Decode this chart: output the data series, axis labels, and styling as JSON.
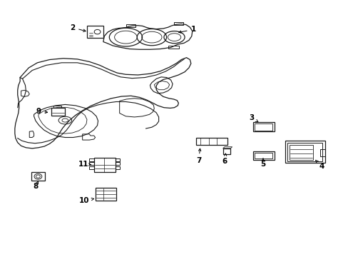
{
  "bg_color": "#ffffff",
  "line_color": "#1a1a1a",
  "lw": 0.9,
  "figsize": [
    4.89,
    3.6
  ],
  "dpi": 100,
  "labels": {
    "1": [
      0.555,
      0.885,
      0.495,
      0.87
    ],
    "2": [
      0.205,
      0.895,
      0.25,
      0.875
    ],
    "3": [
      0.72,
      0.54,
      0.73,
      0.515
    ],
    "4": [
      0.92,
      0.35,
      0.9,
      0.38
    ],
    "5": [
      0.755,
      0.355,
      0.755,
      0.375
    ],
    "6": [
      0.645,
      0.365,
      0.645,
      0.39
    ],
    "7": [
      0.57,
      0.37,
      0.575,
      0.395
    ],
    "8": [
      0.1,
      0.27,
      0.108,
      0.293
    ],
    "9": [
      0.108,
      0.565,
      0.14,
      0.563
    ],
    "10": [
      0.24,
      0.215,
      0.27,
      0.218
    ],
    "11": [
      0.24,
      0.355,
      0.265,
      0.358
    ]
  }
}
